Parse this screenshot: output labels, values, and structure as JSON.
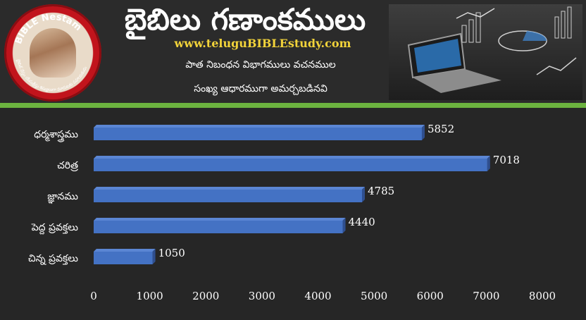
{
  "header": {
    "title": "బైబిలు గణాంకములు",
    "url": "www.teluguBIBLEstudy.com",
    "subtitle_line1": "పాత నిబంధన విభాగములు వచనముల",
    "subtitle_line2": "సంఖ్య ఆధారముగా అమర్చబడినవి"
  },
  "logo": {
    "ring_text_top": "BIBLE Nestam",
    "ring_text_right": "Helper to become disciple of JESUS CHRIST",
    "ring_text_bottom": "బైబిల్ నేస్తం యేసుక్రీస్తు శిష్యులుగా మారుటకు సహాయకుడు"
  },
  "colors": {
    "background": "#262626",
    "bar": "#4472c4",
    "bar_top": "#5b86d4",
    "bar_side": "#2f4f8f",
    "accent_rule": "#6cb33f",
    "url": "#f2d33a"
  },
  "chart_data": {
    "type": "bar",
    "orientation": "horizontal",
    "categories": [
      "ధర్మశాస్త్రము",
      "చరిత్ర",
      "జ్ఞానము",
      "పెద్ద ప్రవక్తలు",
      "చిన్న ప్రవక్తలు"
    ],
    "values": [
      5852,
      7018,
      4785,
      4440,
      1050
    ],
    "xlim": [
      0,
      8000
    ],
    "xticks": [
      0,
      1000,
      2000,
      3000,
      4000,
      5000,
      6000,
      7000,
      8000
    ],
    "grid": false,
    "legend": "none"
  }
}
